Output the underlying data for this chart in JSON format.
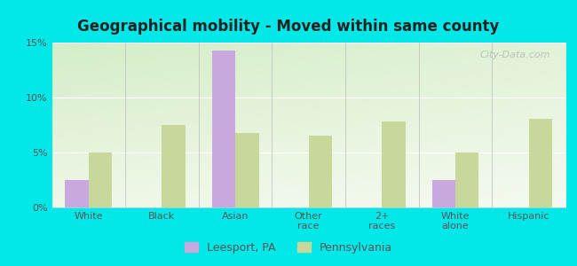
{
  "title": "Geographical mobility - Moved within same county",
  "categories": [
    "White",
    "Black",
    "Asian",
    "Other\nrace",
    "2+\nraces",
    "White\nalone",
    "Hispanic"
  ],
  "leesport_values": [
    2.5,
    0,
    14.3,
    0,
    0,
    2.5,
    0
  ],
  "pennsylvania_values": [
    5.0,
    7.5,
    6.8,
    6.5,
    7.8,
    5.0,
    8.1
  ],
  "leesport_color": "#c9a8e0",
  "pennsylvania_color": "#c8d89a",
  "background_color": "#00e8e8",
  "ylim": [
    0,
    15
  ],
  "yticks": [
    0,
    5,
    10,
    15
  ],
  "ytick_labels": [
    "0%",
    "5%",
    "10%",
    "15%"
  ],
  "bar_width": 0.32,
  "legend_labels": [
    "Leesport, PA",
    "Pennsylvania"
  ],
  "watermark": "City-Data.com",
  "grid_color": "#ffffff",
  "tick_color": "#555555",
  "title_color": "#222222",
  "title_fontsize": 12,
  "tick_fontsize": 8,
  "legend_fontsize": 9
}
